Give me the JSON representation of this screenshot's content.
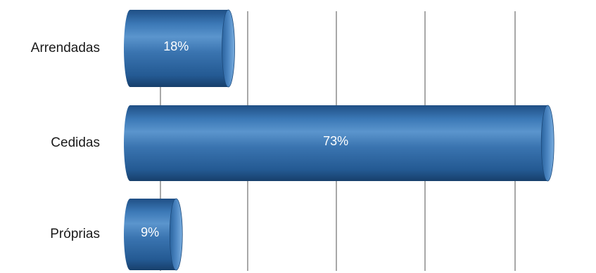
{
  "chart_data": {
    "type": "bar",
    "orientation": "horizontal",
    "categories": [
      "Arrendadas",
      "Cedidas",
      "Próprias"
    ],
    "values": [
      18,
      73,
      9
    ],
    "data_labels": [
      "18%",
      "73%",
      "9%"
    ],
    "xlim": [
      0,
      80
    ],
    "grid": true,
    "legend": "none",
    "bar_color": "#2e6aa8",
    "bar_highlight": "#7fb2e0",
    "bar_shadow": "#163e6a",
    "grid_color": "#8c8c8c"
  }
}
